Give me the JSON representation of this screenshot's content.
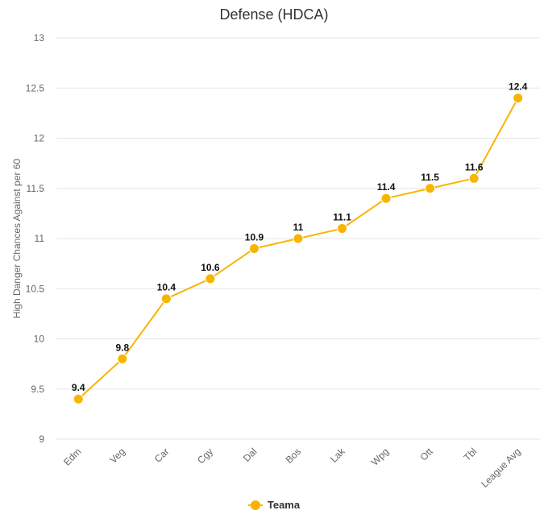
{
  "chart_data": {
    "type": "line",
    "title": "Defense (HDCA)",
    "xlabel": "",
    "ylabel": "High Danger Chances Against per 60",
    "categories": [
      "Edm",
      "Veg",
      "Car",
      "Cgy",
      "Dal",
      "Bos",
      "Lak",
      "Wpg",
      "Ott",
      "Tbl",
      "League Avg"
    ],
    "series": [
      {
        "name": "Teama",
        "values": [
          9.4,
          9.8,
          10.4,
          10.6,
          10.9,
          11,
          11.1,
          11.4,
          11.5,
          11.6,
          12.4
        ]
      }
    ],
    "data_labels": [
      "9.4",
      "9.8",
      "10.4",
      "10.6",
      "10.9",
      "11",
      "11.1",
      "11.4",
      "11.5",
      "11.6",
      "12.4"
    ],
    "ylim": [
      9,
      13
    ],
    "yticks": [
      "9",
      "9.5",
      "10",
      "10.5",
      "11",
      "11.5",
      "12",
      "12.5",
      "13"
    ],
    "grid": true,
    "legend_position": "bottom",
    "colors": {
      "series": "#f8b500",
      "grid": "#e6e6e6",
      "axis_text": "#666666"
    }
  }
}
